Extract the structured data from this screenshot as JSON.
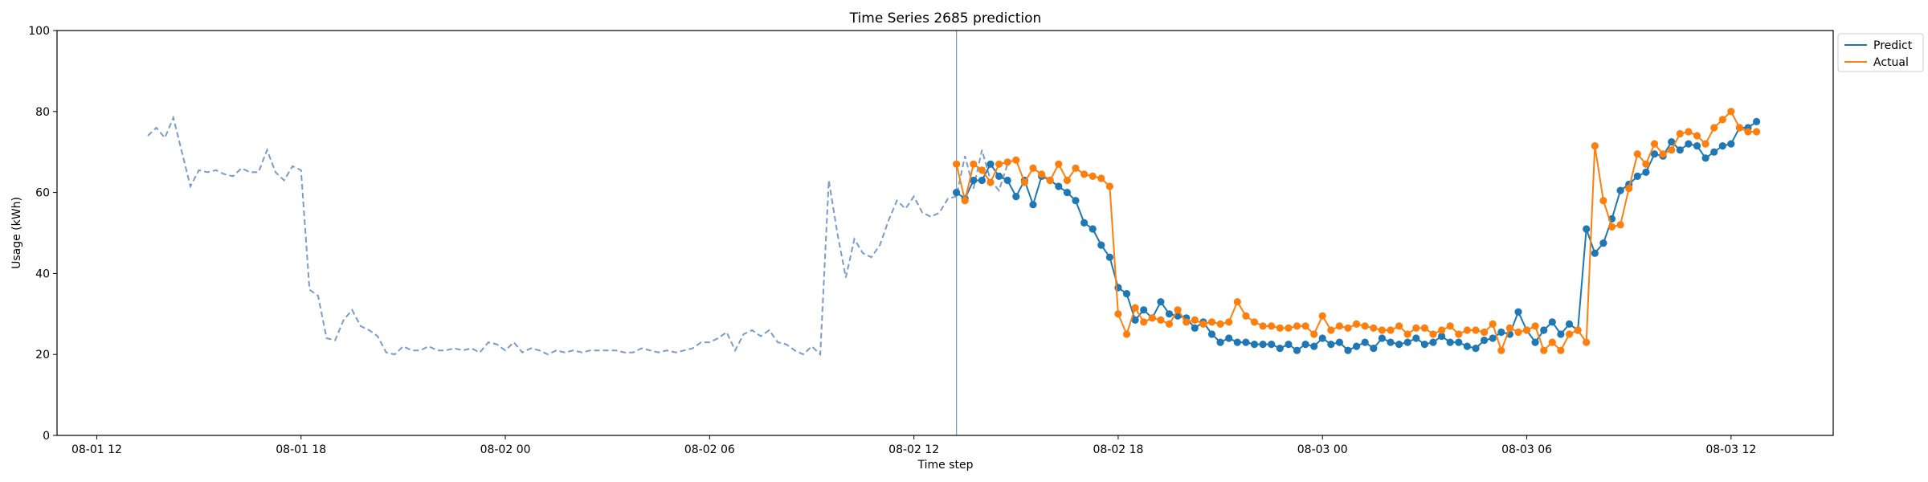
{
  "chart_data": {
    "type": "line",
    "title": "Time Series 2685 prediction",
    "xlabel": "Time step",
    "ylabel": "Usage (kWh)",
    "ylim": [
      0,
      100
    ],
    "xlim": [
      "2025-08-01 10:50",
      "2025-08-03 15:00"
    ],
    "xticks": [
      {
        "label": "08-01 12",
        "t": "2025-08-01 12:00"
      },
      {
        "label": "08-01 18",
        "t": "2025-08-01 18:00"
      },
      {
        "label": "08-02 00",
        "t": "2025-08-02 00:00"
      },
      {
        "label": "08-02 06",
        "t": "2025-08-02 06:00"
      },
      {
        "label": "08-02 12",
        "t": "2025-08-02 12:00"
      },
      {
        "label": "08-02 18",
        "t": "2025-08-02 18:00"
      },
      {
        "label": "08-03 00",
        "t": "2025-08-03 00:00"
      },
      {
        "label": "08-03 06",
        "t": "2025-08-03 06:00"
      },
      {
        "label": "08-03 12",
        "t": "2025-08-03 12:00"
      }
    ],
    "yticks": [
      0,
      20,
      40,
      60,
      80,
      100
    ],
    "grid": false,
    "legend": "upper-right-outside",
    "split_time": "2025-08-02 13:15",
    "history": {
      "start": "2025-08-01 13:30",
      "step_minutes": 15,
      "color": "#7b9bc9",
      "values": [
        74,
        76,
        73.5,
        78.5,
        70,
        61.5,
        65.5,
        65,
        65.5,
        64.5,
        64,
        66,
        65,
        65,
        70.5,
        65,
        63,
        66.5,
        65.5,
        36,
        34.5,
        24,
        23.5,
        28.5,
        31,
        27,
        26,
        24.5,
        20.5,
        20,
        22,
        21,
        21,
        22,
        21,
        21,
        21.5,
        21,
        21.5,
        20.5,
        23,
        22.5,
        21,
        23,
        20.5,
        21.5,
        21,
        20,
        21,
        20.5,
        21,
        20.5,
        21,
        21,
        21,
        21,
        20.5,
        20.5,
        21.5,
        21,
        20.5,
        21,
        20.5,
        21,
        21.5,
        23,
        23,
        24,
        25.5,
        21,
        25,
        26,
        24.5,
        26,
        23,
        22.5,
        21,
        20,
        22,
        20,
        63,
        50,
        39,
        48.5,
        45,
        44,
        47,
        53,
        58,
        56,
        59,
        55,
        54,
        55,
        58.5,
        59,
        69,
        61,
        70.5,
        63,
        60.5,
        67
      ]
    },
    "series": [
      {
        "name": "Predict",
        "color": "#1f77b4",
        "start": "2025-08-02 13:15",
        "step_minutes": 15,
        "values": [
          60,
          58.5,
          63,
          63,
          67,
          64,
          63,
          59,
          63,
          57,
          64,
          63,
          61.5,
          60,
          58,
          52.5,
          51,
          47,
          44,
          36.5,
          35,
          28.5,
          31,
          29,
          33,
          30,
          29.5,
          29,
          26.5,
          28,
          25,
          23,
          24,
          23,
          23,
          22.5,
          22.5,
          22.5,
          21.5,
          22.5,
          21,
          22.5,
          22,
          24,
          22.5,
          23,
          21,
          22,
          23,
          21.5,
          24,
          23,
          22.5,
          23,
          24,
          22.5,
          23,
          24.5,
          23,
          23,
          22,
          21.5,
          23.5,
          24,
          25.5,
          25,
          30.5,
          26,
          23,
          26,
          28,
          25,
          27.5,
          26,
          51,
          45,
          47.5,
          53.5,
          60.5,
          62,
          64,
          65,
          69.5,
          69,
          72.5,
          70.5,
          72,
          71.5,
          68.5,
          70,
          71.5,
          72,
          76,
          76,
          77.5
        ]
      },
      {
        "name": "Actual",
        "color": "#ff7f0e",
        "start": "2025-08-02 13:15",
        "step_minutes": 15,
        "values": [
          67,
          58,
          67,
          65.5,
          62.5,
          67,
          67.5,
          68,
          62.5,
          66,
          64.5,
          63,
          67,
          63,
          66,
          64.5,
          64,
          63.5,
          61.5,
          30,
          25,
          31.5,
          28,
          29,
          28.5,
          27.5,
          31,
          28,
          28.5,
          27.5,
          28,
          27.5,
          28,
          33,
          29.5,
          28,
          27,
          27,
          26.5,
          26.5,
          27,
          27,
          25,
          29.5,
          26,
          27,
          26.5,
          27.5,
          27,
          26.5,
          26,
          26,
          27,
          25,
          26.5,
          26.5,
          25,
          26,
          27,
          25,
          26,
          26,
          25.5,
          27.5,
          21,
          26.5,
          25.5,
          26,
          27,
          21,
          23,
          21,
          25,
          26,
          23,
          71.5,
          58,
          51.5,
          52,
          61,
          69.5,
          67,
          72,
          69.5,
          70.5,
          74.5,
          75,
          74,
          72,
          76,
          78,
          80,
          76,
          75,
          75
        ]
      }
    ]
  }
}
